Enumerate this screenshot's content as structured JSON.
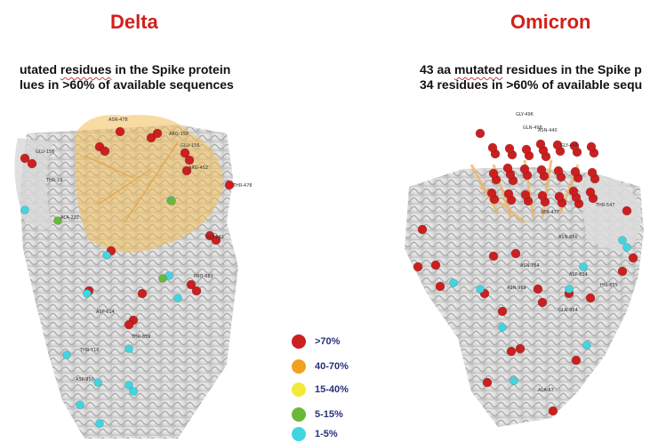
{
  "left_panel": {
    "title": "Delta",
    "caption_line1_a": "utated ",
    "caption_line1_b": "residues",
    "caption_line1_c": " in the Spike protein",
    "caption_line2_a": "lues",
    "caption_line2_b": " in >60% of available sequences",
    "residue_labels": [
      "GLU-156",
      "ASN-478",
      "GLU-156",
      "ARG-452",
      "THR-478",
      "THR-19",
      "ALA-222",
      "PRO-681",
      "GLY-142",
      "THR-716",
      "ASP-950",
      "ASP-614",
      "THR-859",
      "ARG-158"
    ]
  },
  "right_panel": {
    "title": "Omicron",
    "caption_line1_a": "43 aa ",
    "caption_line1_b": "mutated",
    "caption_line1_c": " residues in the Spike p",
    "caption_line2_a": "34 ",
    "caption_line2_b": "residues",
    "caption_line2_c": " in >60% of available sequ",
    "residue_labels": [
      "GLY-496",
      "GLN-498",
      "ASN-440",
      "GLY-446",
      "SER-477",
      "THR-547",
      "ASN-856",
      "HIS-655",
      "ASP-614",
      "ASN-764",
      "GLN-954",
      "ASN-969",
      "ALA-67"
    ]
  },
  "legend": {
    "items": [
      {
        "label": ">70%",
        "color": "#cc1f1f"
      },
      {
        "label": "40-70%",
        "color": "#f0a21e"
      },
      {
        "label": "15-40%",
        "color": "#f2ea3a"
      },
      {
        "label": "5-15%",
        "color": "#6ab83a"
      },
      {
        "label": "1-5%",
        "color": "#3fd6e2"
      }
    ]
  }
}
